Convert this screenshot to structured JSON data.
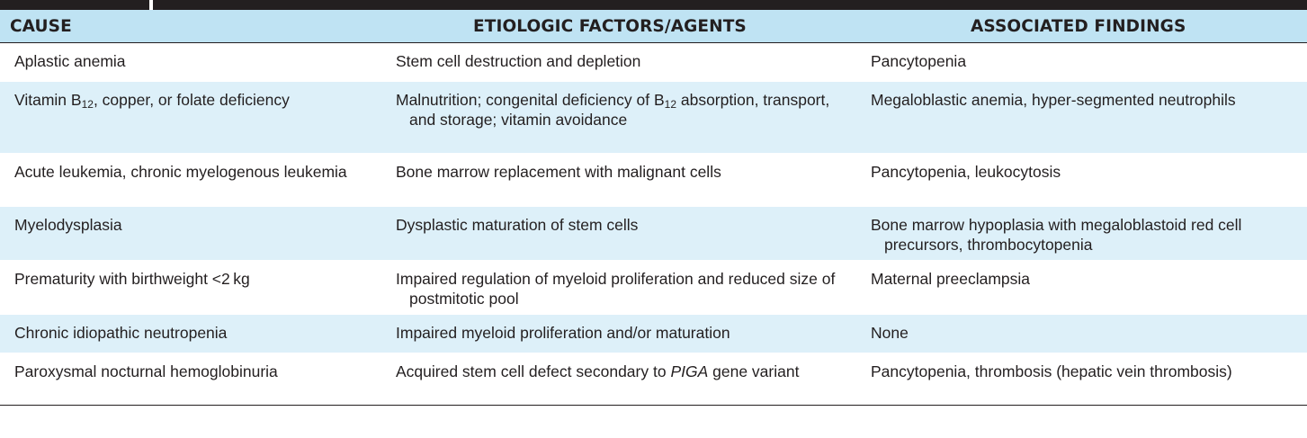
{
  "table": {
    "headers": [
      "CAUSE",
      "ETIOLOGIC FACTORS/AGENTS",
      "ASSOCIATED FINDINGS"
    ],
    "rows": [
      {
        "cause": "Aplastic anemia",
        "etiology": "Stem cell destruction and depletion",
        "findings": "Pancytopenia"
      },
      {
        "cause_parts": [
          "Vitamin B",
          "12",
          ", copper, or folate deficiency"
        ],
        "etiology_parts": [
          "Malnutrition; congenital deficiency of B",
          "12",
          " absorption, transport, and storage; vitamin avoidance"
        ],
        "findings": "Megaloblastic anemia, hyper-segmented neutrophils"
      },
      {
        "cause": "Acute leukemia, chronic myelogenous leukemia",
        "etiology": "Bone marrow replacement with malignant cells",
        "findings": "Pancytopenia, leukocytosis"
      },
      {
        "cause": "Myelodysplasia",
        "etiology": "Dysplastic maturation of stem cells",
        "findings": "Bone marrow hypoplasia with megaloblastoid red cell precursors, thrombocytopenia"
      },
      {
        "cause": "Prematurity with birthweight <2 kg",
        "etiology": "Impaired regulation of myeloid proliferation and reduced size of postmitotic pool",
        "findings": "Maternal preeclampsia"
      },
      {
        "cause": "Chronic idiopathic neutropenia",
        "etiology": "Impaired myeloid proliferation and/or maturation",
        "findings": "None"
      },
      {
        "cause": "Paroxysmal nocturnal hemoglobinuria",
        "etiology_parts": [
          "Acquired stem cell defect secondary to ",
          "PIGA",
          " gene variant"
        ],
        "findings": "Pancytopenia, thrombosis (hepatic vein thrombosis)"
      }
    ]
  },
  "colors": {
    "header_bg": "#bfe3f3",
    "alt_row_bg": "#ddf0f9",
    "text": "#231f20",
    "top_bar": "#231f20"
  }
}
